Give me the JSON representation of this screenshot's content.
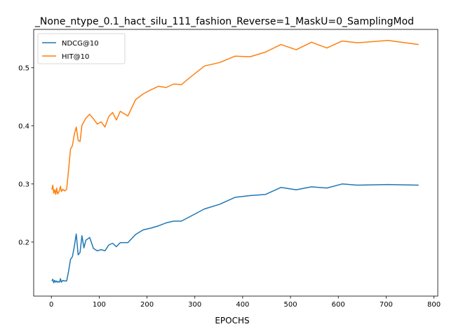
{
  "chart_data": {
    "type": "line",
    "title": "_None_ntype_0.1_hact_silu_111_fashion_Reverse=1_MaskU=0_SamplingMod",
    "xlabel": "EPOCHS",
    "ylabel": "",
    "xlim": [
      -37,
      808
    ],
    "ylim": [
      0.107,
      0.566
    ],
    "xticks": [
      0,
      100,
      200,
      300,
      400,
      500,
      600,
      700,
      800
    ],
    "yticks": [
      0.2,
      0.3,
      0.4,
      0.5
    ],
    "grid": false,
    "legend_position": "top-left",
    "series": [
      {
        "name": "NDCG@10",
        "color": "#1f77b4",
        "x": [
          1,
          3,
          5,
          7,
          9,
          11,
          13,
          15,
          17,
          19,
          21,
          24,
          28,
          32,
          36,
          40,
          44,
          48,
          52,
          56,
          60,
          64,
          68,
          72,
          80,
          88,
          96,
          104,
          112,
          120,
          128,
          136,
          144,
          160,
          176,
          192,
          208,
          224,
          240,
          256,
          272,
          288,
          320,
          352,
          384,
          416,
          448,
          480,
          512,
          544,
          576,
          608,
          640,
          704,
          768
        ],
        "values": [
          0.133,
          0.136,
          0.13,
          0.134,
          0.131,
          0.133,
          0.131,
          0.132,
          0.131,
          0.137,
          0.131,
          0.134,
          0.133,
          0.133,
          0.15,
          0.17,
          0.175,
          0.192,
          0.214,
          0.178,
          0.182,
          0.211,
          0.19,
          0.203,
          0.208,
          0.189,
          0.185,
          0.187,
          0.185,
          0.195,
          0.198,
          0.192,
          0.199,
          0.199,
          0.213,
          0.221,
          0.224,
          0.228,
          0.233,
          0.236,
          0.236,
          0.243,
          0.257,
          0.265,
          0.277,
          0.28,
          0.282,
          0.294,
          0.29,
          0.295,
          0.293,
          0.3,
          0.298,
          0.299,
          0.298
        ]
      },
      {
        "name": "HIT@10",
        "color": "#ff7f0e",
        "x": [
          1,
          3,
          5,
          7,
          9,
          11,
          13,
          15,
          17,
          19,
          21,
          24,
          28,
          32,
          36,
          40,
          44,
          48,
          52,
          56,
          60,
          64,
          68,
          72,
          80,
          88,
          96,
          104,
          112,
          120,
          128,
          136,
          144,
          160,
          176,
          192,
          208,
          224,
          240,
          256,
          272,
          288,
          320,
          352,
          384,
          416,
          448,
          480,
          512,
          544,
          576,
          608,
          640,
          704,
          768
        ],
        "values": [
          0.29,
          0.298,
          0.284,
          0.29,
          0.282,
          0.293,
          0.283,
          0.285,
          0.289,
          0.296,
          0.287,
          0.291,
          0.288,
          0.291,
          0.325,
          0.36,
          0.366,
          0.385,
          0.398,
          0.375,
          0.373,
          0.401,
          0.407,
          0.413,
          0.42,
          0.412,
          0.403,
          0.407,
          0.398,
          0.416,
          0.423,
          0.41,
          0.425,
          0.417,
          0.445,
          0.455,
          0.462,
          0.468,
          0.466,
          0.472,
          0.471,
          0.482,
          0.503,
          0.509,
          0.52,
          0.519,
          0.527,
          0.54,
          0.531,
          0.544,
          0.534,
          0.546,
          0.543,
          0.547,
          0.54
        ]
      }
    ]
  }
}
